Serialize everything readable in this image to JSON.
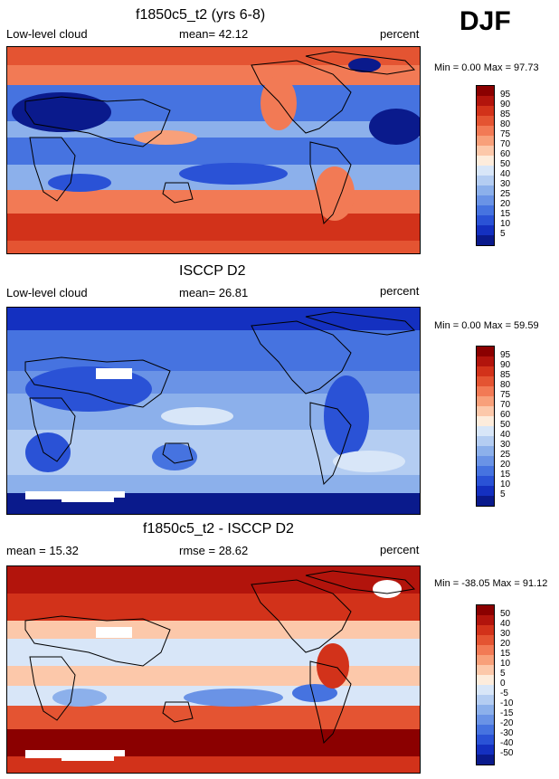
{
  "season_label": "DJF",
  "units_label": "percent",
  "panels": [
    {
      "title": "f1850c5_t2 (yrs 6-8)",
      "variable_label": "Low-level cloud",
      "mean_text": "mean=  42.12",
      "minmax_text": "Min =   0.00 Max =  97.73",
      "colorbar_labels": [
        "95",
        "90",
        "85",
        "80",
        "75",
        "70",
        "60",
        "50",
        "40",
        "30",
        "25",
        "20",
        "15",
        "10",
        "5"
      ],
      "colorbar_colors": [
        "#8b0000",
        "#b2140c",
        "#d2321a",
        "#e45432",
        "#f27a55",
        "#f8a07a",
        "#fcc8aa",
        "#fdecdc",
        "#d8e6f8",
        "#b4cdf2",
        "#8cb0eb",
        "#6a93e6",
        "#4673e0",
        "#2a52d6",
        "#1430c0",
        "#0a1a8c"
      ]
    },
    {
      "title": "ISCCP D2",
      "variable_label": "Low-level cloud",
      "mean_text": "mean=  26.81",
      "minmax_text": "Min =   0.00 Max =  59.59",
      "colorbar_labels": [
        "95",
        "90",
        "85",
        "80",
        "75",
        "70",
        "60",
        "50",
        "40",
        "30",
        "25",
        "20",
        "15",
        "10",
        "5"
      ],
      "colorbar_colors": [
        "#8b0000",
        "#b2140c",
        "#d2321a",
        "#e45432",
        "#f27a55",
        "#f8a07a",
        "#fcc8aa",
        "#fdecdc",
        "#d8e6f8",
        "#b4cdf2",
        "#8cb0eb",
        "#6a93e6",
        "#4673e0",
        "#2a52d6",
        "#1430c0",
        "#0a1a8c"
      ]
    },
    {
      "title": "f1850c5_t2 - ISCCP D2",
      "variable_label": "mean =  15.32",
      "mean_text": "rmse =  28.62",
      "minmax_text": "Min = -38.05 Max =  91.12",
      "colorbar_labels": [
        "50",
        "40",
        "30",
        "20",
        "15",
        "10",
        "5",
        "0",
        "-5",
        "-10",
        "-15",
        "-20",
        "-30",
        "-40",
        "-50"
      ],
      "colorbar_colors": [
        "#8b0000",
        "#b2140c",
        "#d2321a",
        "#e45432",
        "#f27a55",
        "#f8a07a",
        "#fcc8aa",
        "#fdecdc",
        "#d8e6f8",
        "#b4cdf2",
        "#8cb0eb",
        "#6a93e6",
        "#4673e0",
        "#2a52d6",
        "#1430c0",
        "#0a1a8c"
      ]
    }
  ]
}
